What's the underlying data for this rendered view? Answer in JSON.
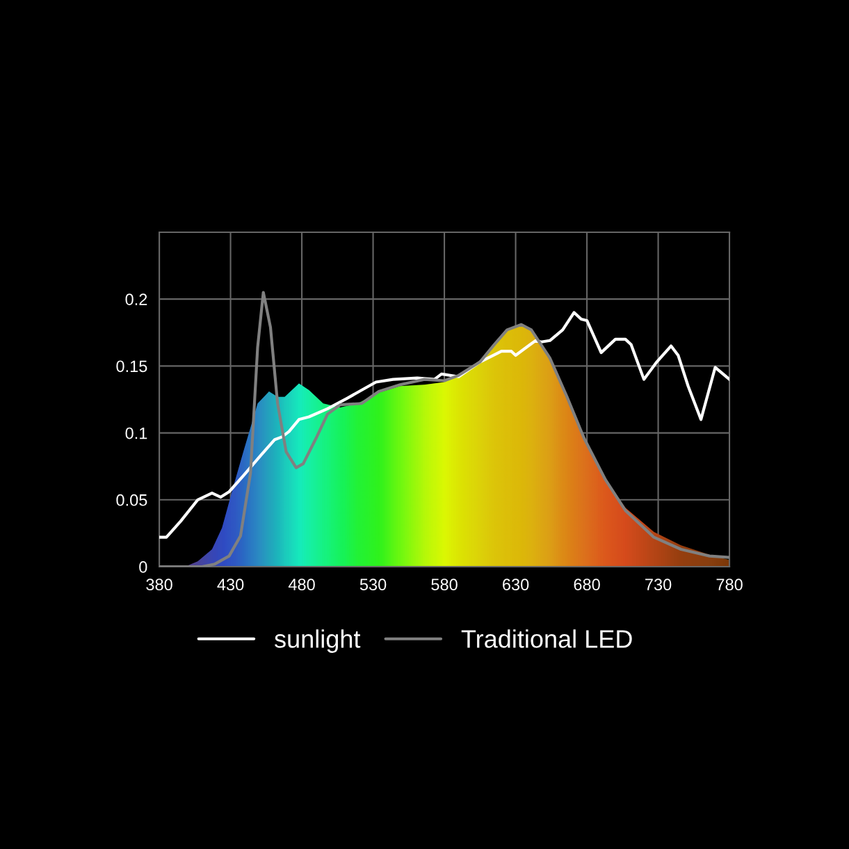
{
  "chart_data": {
    "type": "line",
    "xlim": [
      380,
      780
    ],
    "xticks": [
      380,
      430,
      480,
      530,
      580,
      630,
      680,
      730,
      780
    ],
    "ylim": [
      0,
      0.25
    ],
    "yticks": [
      0,
      0.05,
      0.1,
      0.15,
      0.2,
      {
        "value": 0.25,
        "label": null
      }
    ],
    "grid": true,
    "legend": "bottom",
    "series": [
      {
        "type": "area",
        "x": [
          380,
          398,
          407,
          417,
          424,
          432,
          439,
          449,
          457,
          463,
          468,
          478,
          485,
          495,
          507,
          519,
          534,
          549,
          566,
          580,
          590,
          605,
          615,
          624,
          634,
          641,
          654,
          666,
          678,
          693,
          707,
          727,
          746,
          766,
          780
        ],
        "values": [
          0,
          0,
          0.004,
          0.013,
          0.029,
          0.06,
          0.086,
          0.122,
          0.131,
          0.127,
          0.127,
          0.137,
          0.132,
          0.122,
          0.119,
          0.122,
          0.13,
          0.135,
          0.136,
          0.138,
          0.143,
          0.153,
          0.166,
          0.177,
          0.181,
          0.177,
          0.156,
          0.127,
          0.096,
          0.065,
          0.044,
          0.026,
          0.016,
          0.009,
          0.005
        ],
        "colors": [
          "#5010a0",
          "#5010a0",
          "#4018c0",
          "#2a1ae0",
          "#2020f0",
          "#2030f0",
          "#1a48f0",
          "#1a70f0",
          "#1090e8",
          "#08a8e8",
          "#08c0e8",
          "#00e8e8",
          "#00eec8",
          "#00f0a0",
          "#00f070",
          "#10f040",
          "#20f020",
          "#70f810",
          "#c8f808",
          "#f8f800",
          "#f8e000",
          "#f8c808",
          "#f8b808",
          "#f8b008",
          "#f8a808",
          "#f8a010",
          "#f88818",
          "#f86818",
          "#f85020",
          "#f83020",
          "#f02020",
          "#c81818",
          "#a01010",
          "#901010",
          "#800808"
        ]
      },
      {
        "name": "sunlight",
        "color": "#ffffff",
        "x": [
          380,
          385,
          395,
          407,
          417,
          423,
          429,
          439,
          451,
          461,
          466,
          471,
          478,
          485,
          498,
          512,
          522,
          532,
          544,
          561,
          573,
          578,
          590,
          605,
          620,
          627,
          630,
          644,
          648,
          654,
          663,
          671,
          676,
          680,
          690,
          700,
          707,
          711,
          720,
          729,
          739,
          744,
          751,
          760,
          770,
          780
        ],
        "values": [
          0.022,
          0.022,
          0.034,
          0.05,
          0.055,
          0.052,
          0.056,
          0.068,
          0.083,
          0.095,
          0.097,
          0.101,
          0.11,
          0.112,
          0.118,
          0.126,
          0.132,
          0.138,
          0.14,
          0.141,
          0.14,
          0.144,
          0.142,
          0.153,
          0.161,
          0.161,
          0.158,
          0.169,
          0.168,
          0.169,
          0.177,
          0.19,
          0.185,
          0.184,
          0.16,
          0.17,
          0.17,
          0.166,
          0.14,
          0.153,
          0.165,
          0.158,
          0.135,
          0.11,
          0.149,
          0.14
        ]
      },
      {
        "name": "Traditional LED",
        "color": "#808080",
        "x": [
          380,
          410,
          419,
          429,
          437,
          444,
          449,
          453,
          458,
          463,
          469,
          476,
          481,
          490,
          498,
          507,
          522,
          534,
          549,
          566,
          580,
          590,
          605,
          615,
          624,
          634,
          641,
          654,
          666,
          678,
          693,
          707,
          727,
          746,
          766,
          780
        ],
        "values": [
          0,
          0,
          0.002,
          0.008,
          0.023,
          0.07,
          0.164,
          0.205,
          0.179,
          0.122,
          0.086,
          0.074,
          0.077,
          0.096,
          0.114,
          0.121,
          0.122,
          0.131,
          0.136,
          0.14,
          0.139,
          0.143,
          0.153,
          0.166,
          0.177,
          0.181,
          0.177,
          0.156,
          0.127,
          0.096,
          0.065,
          0.042,
          0.022,
          0.013,
          0.008,
          0.007
        ]
      }
    ]
  }
}
